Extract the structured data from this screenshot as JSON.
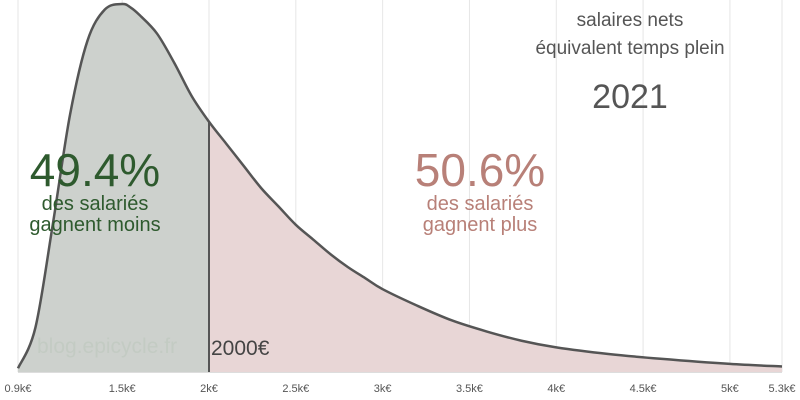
{
  "chart_data": {
    "type": "area",
    "title": "salaires nets",
    "subtitle": "équivalent temps plein",
    "year": "2021",
    "xlabel": "",
    "ylabel": "",
    "x_unit": "€",
    "xlim": [
      900,
      5300
    ],
    "x_ticks": [
      900,
      1500,
      2000,
      2500,
      3000,
      3500,
      4000,
      4500,
      5000,
      5300
    ],
    "x_tick_labels": [
      "0.9k€",
      "1.5k€",
      "2k€",
      "2.5k€",
      "3k€",
      "3.5k€",
      "4k€",
      "4.5k€",
      "5k€",
      "5.3k€"
    ],
    "grid": true,
    "density_curve": {
      "x": [
        900,
        1000,
        1100,
        1200,
        1300,
        1400,
        1500,
        1550,
        1600,
        1700,
        1800,
        1900,
        2000,
        2100,
        2200,
        2300,
        2400,
        2500,
        2600,
        2700,
        2800,
        2900,
        3000,
        3200,
        3400,
        3600,
        3800,
        4000,
        4300,
        4600,
        5000,
        5300
      ],
      "y": [
        0.01,
        0.12,
        0.4,
        0.7,
        0.9,
        0.985,
        1.0,
        0.99,
        0.97,
        0.92,
        0.84,
        0.75,
        0.68,
        0.62,
        0.56,
        0.5,
        0.45,
        0.4,
        0.36,
        0.32,
        0.285,
        0.255,
        0.225,
        0.18,
        0.14,
        0.11,
        0.085,
        0.067,
        0.049,
        0.036,
        0.022,
        0.015
      ]
    },
    "threshold": {
      "x": 2000,
      "label": "2000€"
    },
    "annotations": [
      {
        "percent": "49.4%",
        "line1": "des salariés",
        "line2": "gagnent moins",
        "color": "#2e5a2e"
      },
      {
        "percent": "50.6%",
        "line1": "des salariés",
        "line2": "gagnent plus",
        "color": "#b88078"
      }
    ],
    "colors": {
      "fill_below": "#cdd1cd",
      "fill_above": "#e8d6d6",
      "curve": "#555555",
      "threshold_line": "#555555",
      "grid": "#e6e6e6"
    }
  },
  "watermark": "blog.epicycle.fr"
}
